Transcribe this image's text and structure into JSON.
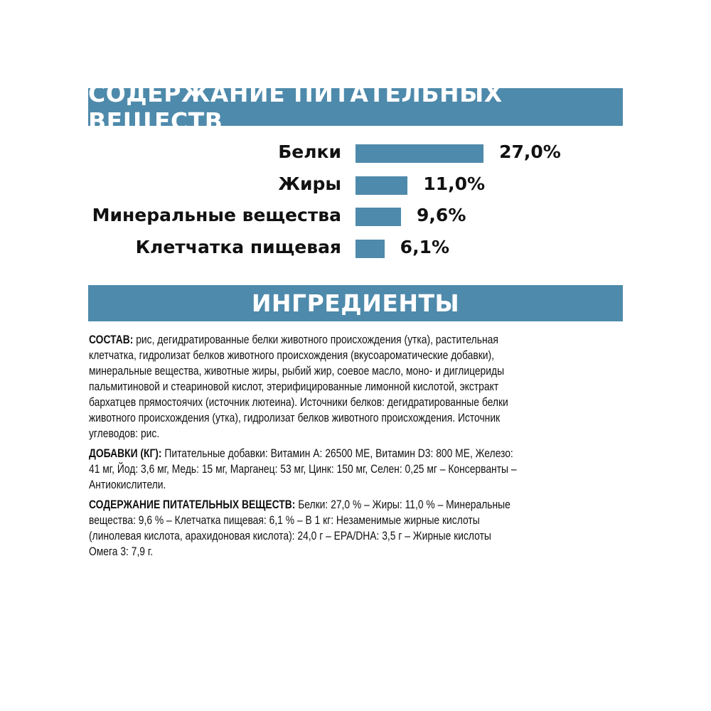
{
  "nutrients_title": "СОДЕРЖАНИЕ ПИТАТЕЛЬНЫХ ВЕЩЕСТВ",
  "ingredients_title": "ИНГРЕДИЕНТЫ",
  "colors": {
    "accent": "#4e8aab",
    "text": "#111111",
    "background": "#ffffff"
  },
  "chart_data": {
    "type": "bar",
    "orientation": "horizontal",
    "categories": [
      "Белки",
      "Жиры",
      "Минеральные вещества",
      "Клетчатка пищевая"
    ],
    "values": [
      27.0,
      11.0,
      9.6,
      6.1
    ],
    "value_labels": [
      "27,0%",
      "11,0%",
      "9,6%",
      "6,1%"
    ],
    "unit": "%",
    "title": "СОДЕРЖАНИЕ ПИТАТЕЛЬНЫХ ВЕЩЕСТВ",
    "xlabel": "",
    "ylabel": "",
    "grid": false,
    "color": "#4e8aab"
  },
  "paragraphs": [
    {
      "label": "СОСТАВ:",
      "lines": [
        " рис, дегидратированные белки животного происхождения (утка), растительная",
        "клетчатка, гидролизат белков животного происхождения (вкусоароматические добавки),",
        "минеральные вещества, животные жиры, рыбий жир, соевое масло, моно- и диглицериды",
        "пальмитиновой и стеариновой кислот, этерифицированные лимонной кислотой, экстракт",
        "бархатцев прямостоячих (источник лютеина). Источники белков: дегидратированные белки",
        "животного происхождения (утка), гидролизат белков животного происхождения. Источник",
        "углеводов: рис."
      ]
    },
    {
      "label": "ДОБАВКИ (КГ):",
      "lines": [
        " Питательные добавки: Витамин А: 26500 МЕ, Витамин D3: 800 МЕ, Железо:",
        "41 мг, Йод: 3,6 мг, Медь: 15 мг, Марганец: 53 мг, Цинк: 150 мг, Селен: 0,25 мг – Консерванты –",
        "Антиокислители."
      ]
    },
    {
      "label": "СОДЕРЖАНИЕ ПИТАТЕЛЬНЫХ ВЕЩЕСТВ:",
      "lines": [
        " Белки: 27,0 % – Жиры: 11,0 % – Минеральные",
        "вещества: 9,6 % – Клетчатка пищевая: 6,1 % – В 1 кг: Незаменимые жирные кислоты",
        "(линолевая кислота, арахидоновая кислота): 24,0 г – EPA/DHA: 3,5 г – Жирные кислоты",
        "Омега 3: 7,9 г."
      ]
    }
  ]
}
